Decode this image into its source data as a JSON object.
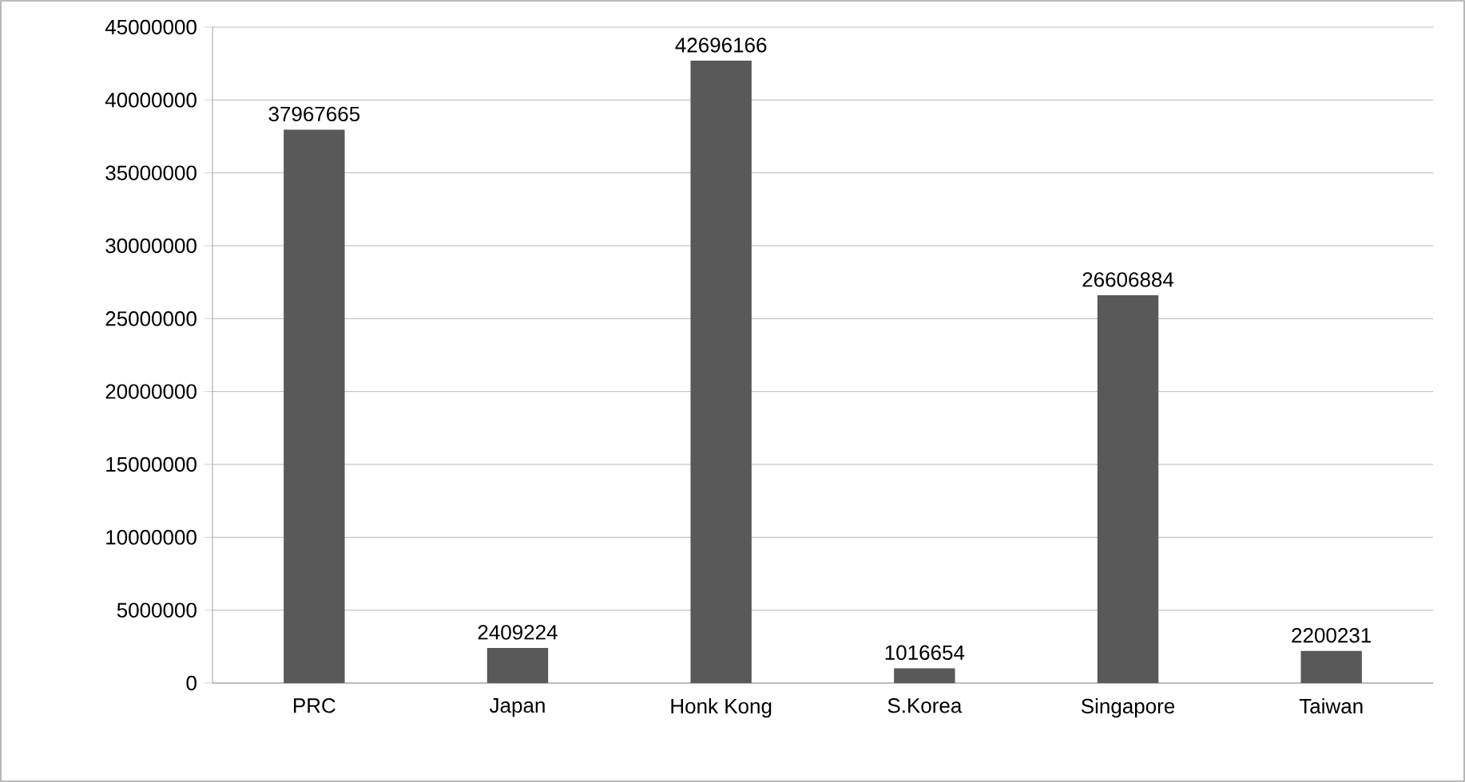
{
  "chart_data": {
    "type": "bar",
    "categories": [
      "PRC",
      "Japan",
      "Honk Kong",
      "S.Korea",
      "Singapore",
      "Taiwan"
    ],
    "values": [
      37967665,
      2409224,
      42696166,
      1016654,
      26606884,
      2200231
    ],
    "color": "#595959",
    "ylim": [
      0,
      45000000
    ],
    "yticks": [
      0,
      5000000,
      10000000,
      15000000,
      20000000,
      25000000,
      30000000,
      35000000,
      40000000,
      45000000
    ],
    "grid": "y",
    "data_labels": true
  }
}
